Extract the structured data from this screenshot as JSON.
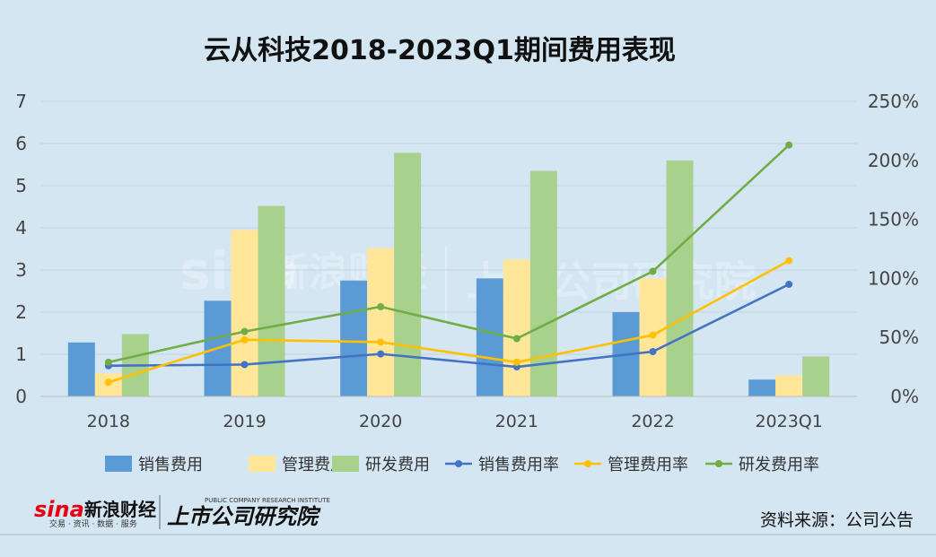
{
  "chart_data": {
    "type": "bar",
    "title": "云从科技2018-2023Q1期间费用表现",
    "categories": [
      "2018",
      "2019",
      "2020",
      "2021",
      "2022",
      "2023Q1"
    ],
    "series": [
      {
        "name": "销售费用",
        "kind": "bar",
        "axis": "left",
        "color": "#5b9bd5",
        "values": [
          1.28,
          2.27,
          2.75,
          2.8,
          2.0,
          0.4
        ]
      },
      {
        "name": "管理费用",
        "kind": "bar",
        "axis": "left",
        "color": "#ffe699",
        "values": [
          0.55,
          3.95,
          3.52,
          3.25,
          2.8,
          0.5
        ]
      },
      {
        "name": "研发费用",
        "kind": "bar",
        "axis": "left",
        "color": "#a9d18e",
        "values": [
          1.48,
          4.52,
          5.78,
          5.35,
          5.6,
          0.95
        ]
      },
      {
        "name": "销售费用率",
        "kind": "line",
        "axis": "right",
        "color": "#4472c4",
        "values": [
          0.26,
          0.27,
          0.36,
          0.25,
          0.38,
          0.95
        ]
      },
      {
        "name": "管理费用率",
        "kind": "line",
        "axis": "right",
        "color": "#ffc000",
        "values": [
          0.12,
          0.48,
          0.46,
          0.29,
          0.52,
          1.15
        ]
      },
      {
        "name": "研发费用率",
        "kind": "line",
        "axis": "right",
        "color": "#70ad47",
        "values": [
          0.29,
          0.55,
          0.76,
          0.49,
          1.06,
          2.13
        ]
      }
    ],
    "ylim_left": [
      0,
      7
    ],
    "yticks_left": [
      "0",
      "1",
      "2",
      "3",
      "4",
      "5",
      "6",
      "7"
    ],
    "ylim_right": [
      0,
      2.5
    ],
    "yticks_right": [
      "0%",
      "50%",
      "100%",
      "150%",
      "200%",
      "250%"
    ],
    "grid": true,
    "legend": "bottom"
  },
  "source": "资料来源：公司公告",
  "logos": {
    "sina": "sina",
    "sina_name": "新浪财经",
    "sina_tagline": "交易 · 资讯 · 数据 · 服务",
    "institute": "上市公司研究院",
    "institute_en": "PUBLIC COMPANY RESEARCH INSTITUTE"
  }
}
